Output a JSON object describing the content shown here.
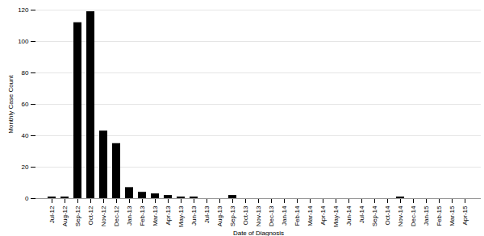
{
  "chart_data": {
    "type": "bar",
    "x_label": "Date of Diagnosis",
    "y_label": "Monthly Case Count",
    "categories": [
      "Jul-12",
      "Aug-12",
      "Sep-12",
      "Oct-12",
      "Nov-12",
      "Dec-12",
      "Jan-13",
      "Feb-13",
      "Mar-13",
      "Apr-13",
      "May-13",
      "Jun-13",
      "Jul-13",
      "Aug-13",
      "Sep-13",
      "Oct-13",
      "Nov-13",
      "Dec-13",
      "Jan-14",
      "Feb-14",
      "Mar-14",
      "Apr-14",
      "May-14",
      "Jun-14",
      "Jul-14",
      "Sep-14",
      "Oct-14",
      "Nov-14",
      "Dec-14",
      "Jan-15",
      "Feb-15",
      "Mar-15",
      "Apr-15"
    ],
    "values": [
      1,
      1,
      112,
      119,
      43,
      35,
      7,
      4,
      3,
      2,
      1,
      1,
      0,
      0,
      2,
      0,
      0,
      0,
      0,
      0,
      0,
      0,
      0,
      0,
      0,
      0,
      0,
      1,
      0,
      0,
      0,
      0,
      0
    ],
    "color": "#000000",
    "ylim": [
      0,
      120
    ],
    "yticks": [
      0,
      20,
      40,
      60,
      80,
      100,
      120
    ],
    "grid": true
  }
}
